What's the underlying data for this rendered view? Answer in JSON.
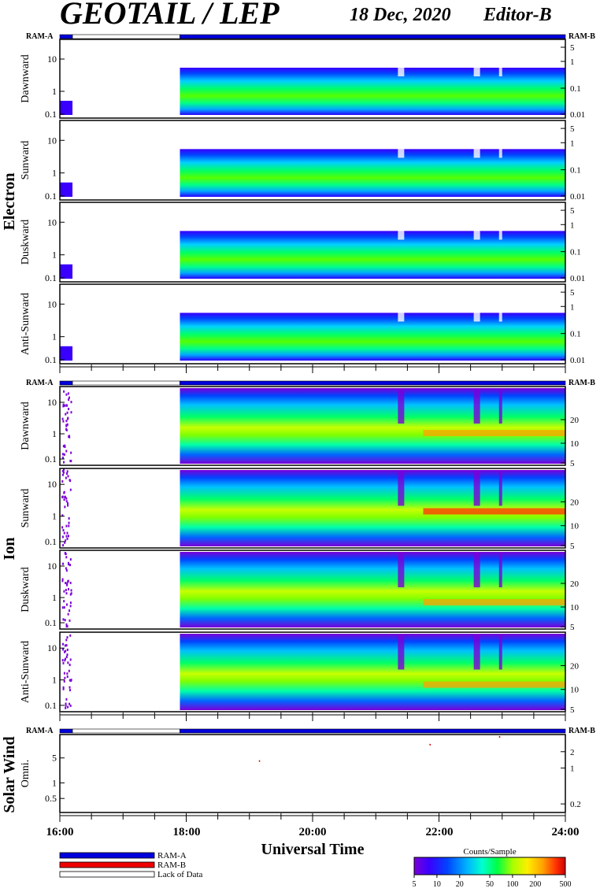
{
  "header": {
    "title": "GEOTAIL / LEP",
    "date": "18 Dec, 2020",
    "editor": "Editor-B"
  },
  "colors": {
    "ram_a": "#0000dd",
    "ram_b": "#ee0000",
    "lack": "#ffffff",
    "colormap": [
      "#7a00d8",
      "#3a00ff",
      "#0044ff",
      "#00b4ff",
      "#00ffd0",
      "#00ff44",
      "#a6ff00",
      "#ffee00",
      "#ffa200",
      "#ff3000",
      "#cc0000"
    ]
  },
  "chart_data": {
    "type": "heatmap",
    "x_axis": {
      "label": "Universal Time",
      "ticks": [
        "16:00",
        "18:00",
        "20:00",
        "22:00",
        "24:00"
      ],
      "range_hours": [
        16,
        24
      ],
      "minor_tick_minutes": 30
    },
    "ram_bar": {
      "left_label": "RAM-A",
      "right_label": "RAM-B",
      "segments": [
        {
          "start": 16.0,
          "end": 16.2,
          "mode": "RAM-A"
        },
        {
          "start": 16.2,
          "end": 17.9,
          "mode": "Lack of Data"
        },
        {
          "start": 17.9,
          "end": 24.0,
          "mode": "RAM-A"
        }
      ]
    },
    "groups": [
      {
        "name": "Electron",
        "panels": [
          {
            "label": "Dawnward",
            "left_ticks": [
              "10",
              "1",
              "0.1"
            ],
            "right_ticks": [
              "5",
              "1",
              "0.1",
              "0.01"
            ]
          },
          {
            "label": "Sunward",
            "left_ticks": [
              "10",
              "1",
              "0.1"
            ],
            "right_ticks": [
              "5",
              "1",
              "0.1",
              "0.01"
            ]
          },
          {
            "label": "Duskward",
            "left_ticks": [
              "10",
              "1",
              "0.1"
            ],
            "right_ticks": [
              "5",
              "1",
              "0.1",
              "0.01"
            ]
          },
          {
            "label": "Anti-Sunward",
            "left_ticks": [
              "10",
              "1",
              "0.1"
            ],
            "right_ticks": [
              "5",
              "1",
              "0.1",
              "0.01"
            ]
          }
        ]
      },
      {
        "name": "Ion",
        "panels": [
          {
            "label": "Dawnward",
            "left_ticks": [
              "10",
              "1",
              "0.1"
            ],
            "right_ticks": [
              "20",
              "10",
              "5"
            ]
          },
          {
            "label": "Sunward",
            "left_ticks": [
              "10",
              "1",
              "0.1"
            ],
            "right_ticks": [
              "20",
              "10",
              "5"
            ]
          },
          {
            "label": "Duskward",
            "left_ticks": [
              "10",
              "1",
              "0.1"
            ],
            "right_ticks": [
              "20",
              "10",
              "5"
            ]
          },
          {
            "label": "Anti-Sunward",
            "left_ticks": [
              "10",
              "1",
              "0.1"
            ],
            "right_ticks": [
              "20",
              "10",
              "5"
            ]
          }
        ]
      },
      {
        "name": "Solar Wind",
        "panels": [
          {
            "label": "Omni.",
            "left_ticks": [
              "5",
              "1",
              "0.5"
            ],
            "right_ticks": [
              "2",
              "1",
              "0.2"
            ]
          }
        ]
      }
    ],
    "data_coverage": [
      {
        "start": 16.0,
        "end": 16.2,
        "state": "data"
      },
      {
        "start": 16.2,
        "end": 17.9,
        "state": "no data"
      },
      {
        "start": 17.9,
        "end": 24.0,
        "state": "data"
      }
    ],
    "colorbar": {
      "title": "Counts/Sample",
      "ticks": [
        "5",
        "10",
        "20",
        "50",
        "100",
        "200",
        "500"
      ],
      "scale": "log",
      "range": [
        5,
        500
      ]
    },
    "legend": [
      {
        "label": "RAM-A",
        "color": "#0000dd"
      },
      {
        "label": "RAM-B",
        "color": "#ee0000"
      },
      {
        "label": "Lack of Data",
        "color": "#ffffff"
      }
    ]
  }
}
